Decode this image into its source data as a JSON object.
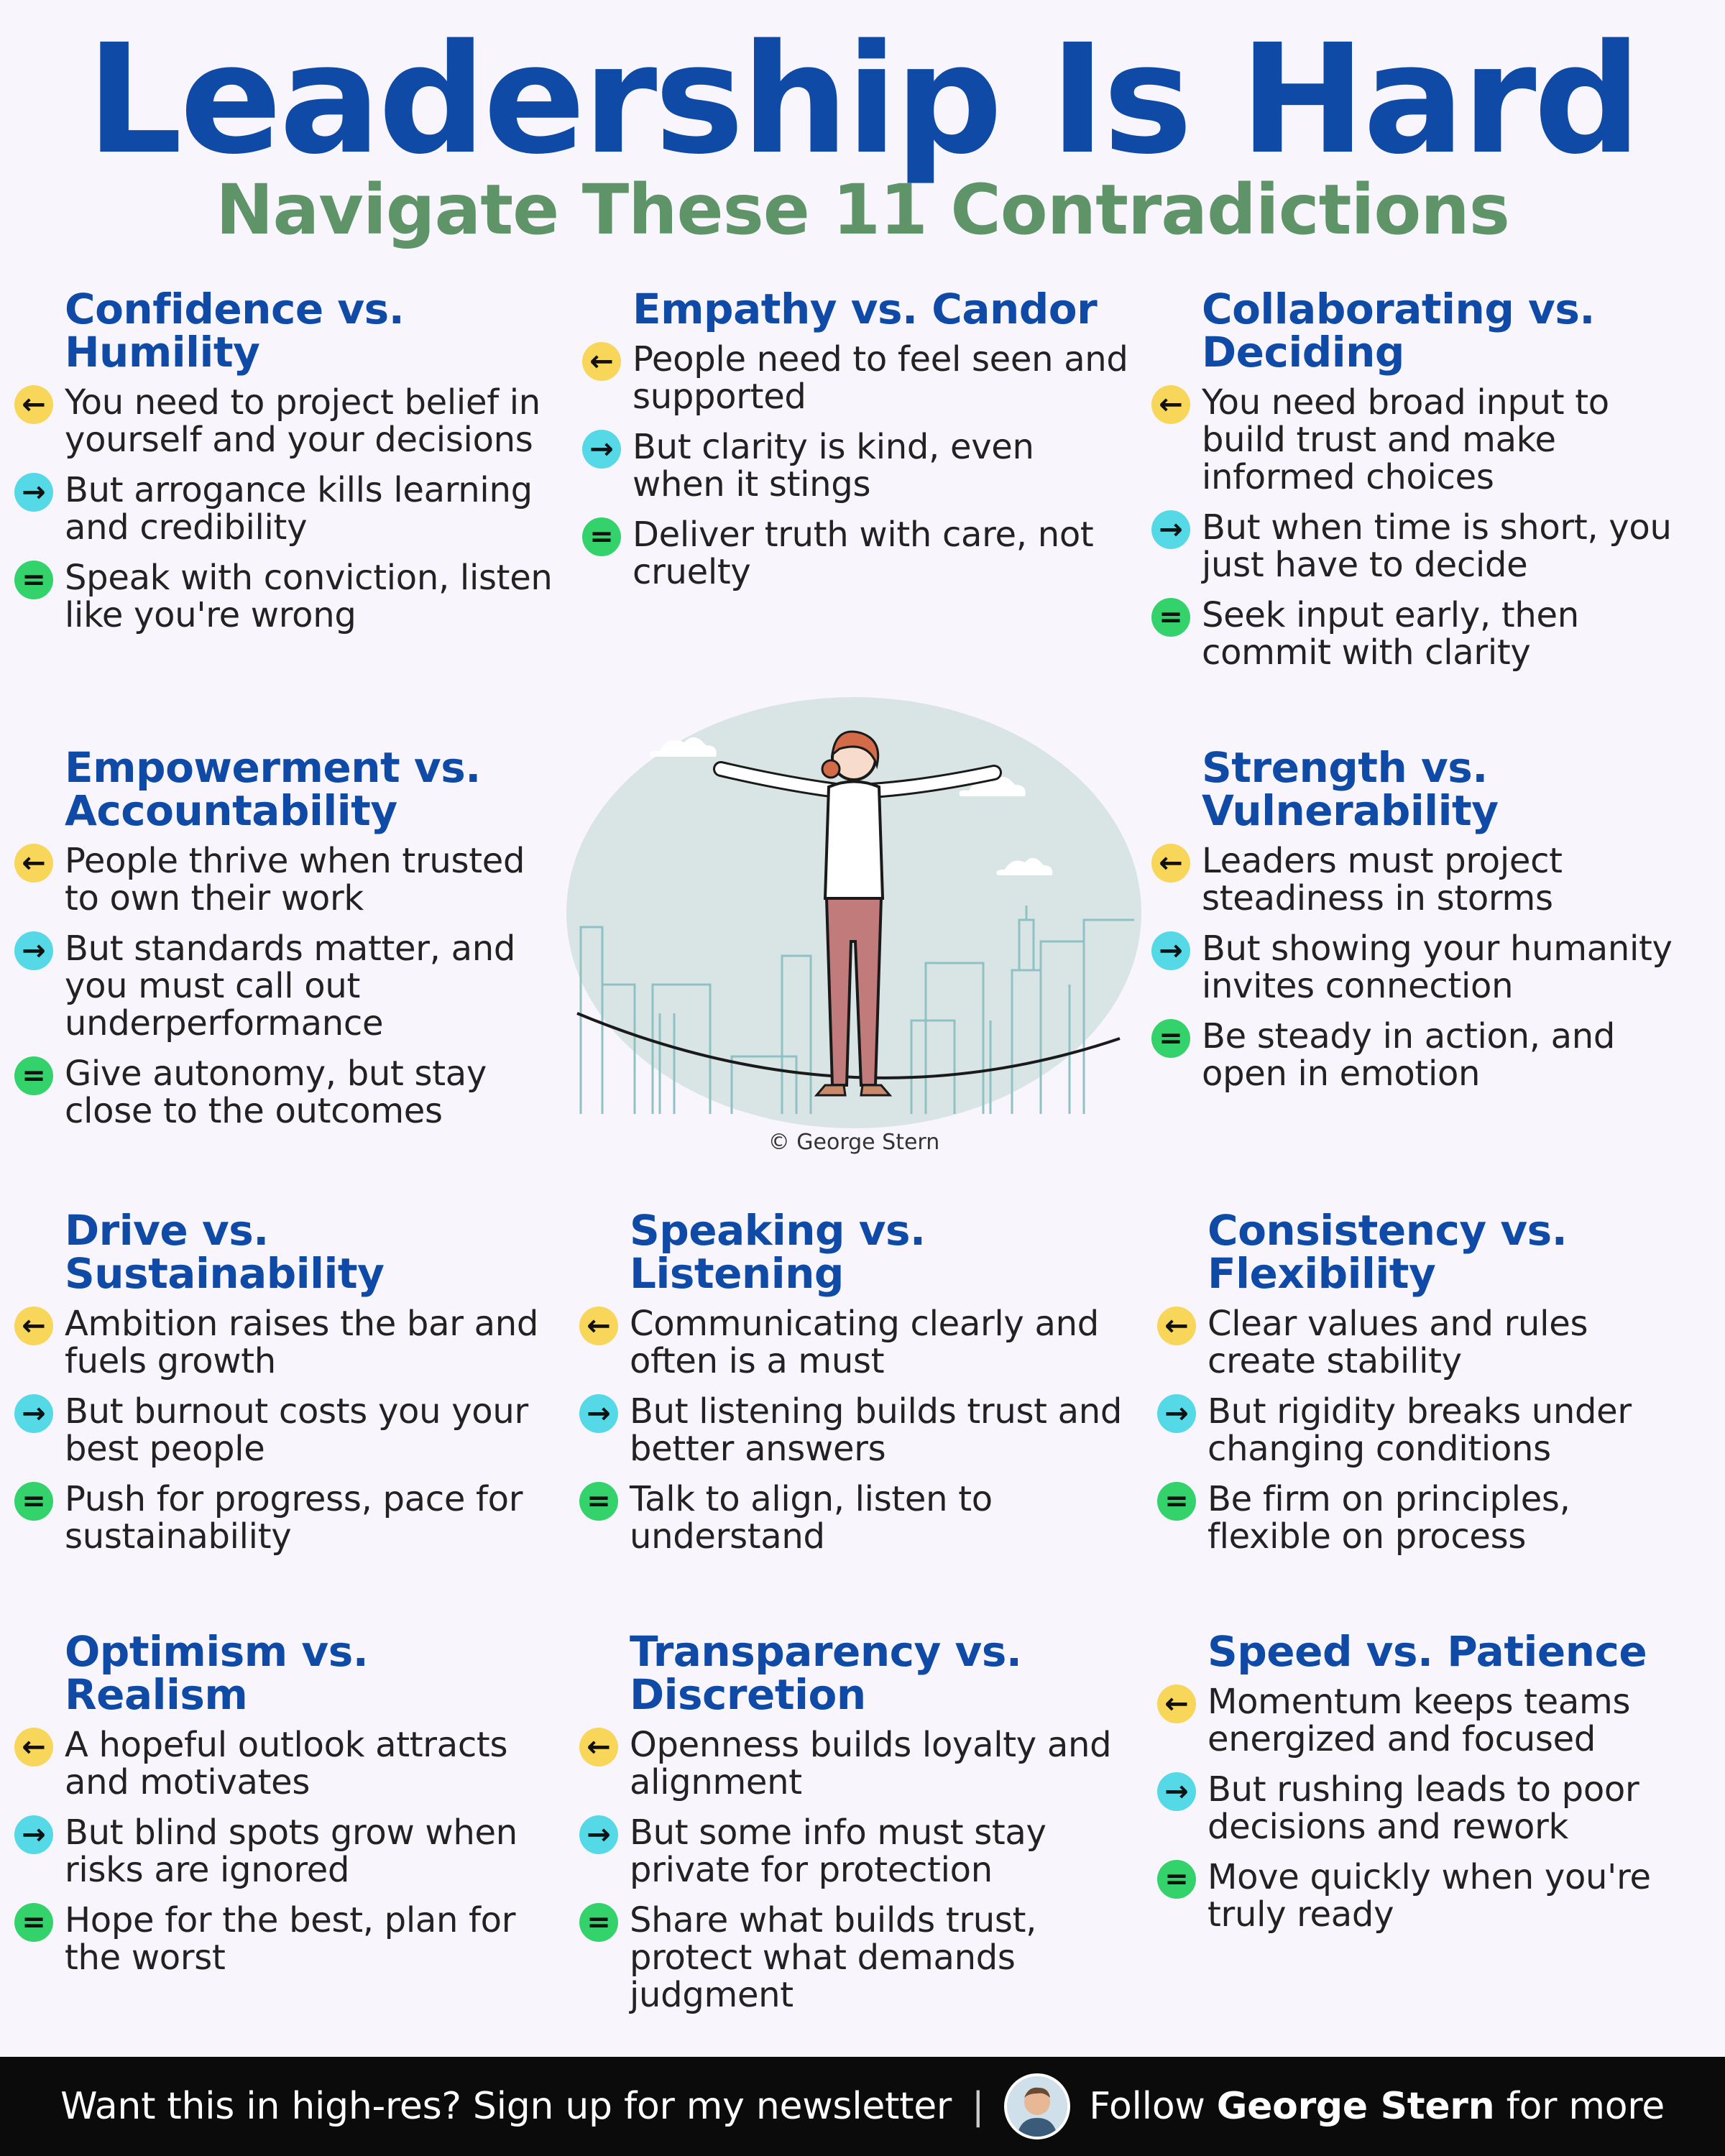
{
  "title": "Leadership Is Hard",
  "subtitle": "Navigate These 11 Contradictions",
  "colors": {
    "title": "#0f4aa6",
    "subtitle": "#5e9468",
    "left_arrow_bg": "#f7d65a",
    "right_arrow_bg": "#55d9e6",
    "equals_bg": "#34d26b",
    "footer_bg": "#0b0b0b"
  },
  "icons": {
    "left": "←",
    "right": "→",
    "equals": "="
  },
  "blocks": [
    {
      "heading": "Confidence vs. Humility",
      "items": [
        "You need to project belief in yourself and your decisions",
        "But arrogance kills learning and credibility",
        "Speak with conviction, listen like you're wrong"
      ]
    },
    {
      "heading": "Empathy vs. Candor",
      "items": [
        "People need to feel seen and supported",
        "But clarity is kind, even when it stings",
        "Deliver truth with care, not cruelty"
      ]
    },
    {
      "heading": "Collaborating vs. Deciding",
      "items": [
        "You need broad input to build trust and make informed choices",
        "But when time is short, you just have to decide",
        "Seek input early, then commit with clarity"
      ]
    },
    {
      "heading": "Empowerment vs. Accountability",
      "items": [
        "People thrive when trusted to own their work",
        "But standards matter, and you must call out underperformance",
        "Give autonomy, but stay close to the outcomes"
      ]
    },
    {
      "heading": "Strength vs. Vulnerability",
      "items": [
        "Leaders must project steadiness in storms",
        "But showing your humanity invites connection",
        "Be steady in action, and open in emotion"
      ]
    },
    {
      "heading": "Drive vs. Sustainability",
      "items": [
        "Ambition raises the bar and fuels growth",
        "But burnout costs you your best people",
        "Push for progress, pace for sustainability"
      ]
    },
    {
      "heading": "Speaking vs. Listening",
      "items": [
        "Communicating clearly and often is a must",
        "But listening builds trust and better answers",
        "Talk to align, listen to understand"
      ]
    },
    {
      "heading": "Consistency vs. Flexibility",
      "items": [
        "Clear values and rules create stability",
        "But rigidity breaks under changing conditions",
        "Be firm on principles, flexible on process"
      ]
    },
    {
      "heading": "Optimism vs. Realism",
      "items": [
        "A hopeful outlook attracts and motivates",
        "But blind spots grow when risks are ignored",
        "Hope for the best, plan for the worst"
      ]
    },
    {
      "heading": "Transparency vs. Discretion",
      "items": [
        "Openness builds loyalty and alignment",
        "But some info must stay private for protection",
        "Share what builds trust, protect what demands judgment"
      ]
    },
    {
      "heading": "Speed vs. Patience",
      "items": [
        "Momentum keeps teams energized and focused",
        "But rushing leads to poor decisions and rework",
        "Move quickly when you're truly ready"
      ]
    }
  ],
  "illustration_credit": "© George Stern",
  "footer": {
    "cta": "Want this in high-res? Sign up for my newsletter",
    "separator": "|",
    "follow_prefix": "Follow",
    "name": "George Stern",
    "follow_suffix": "for more"
  }
}
